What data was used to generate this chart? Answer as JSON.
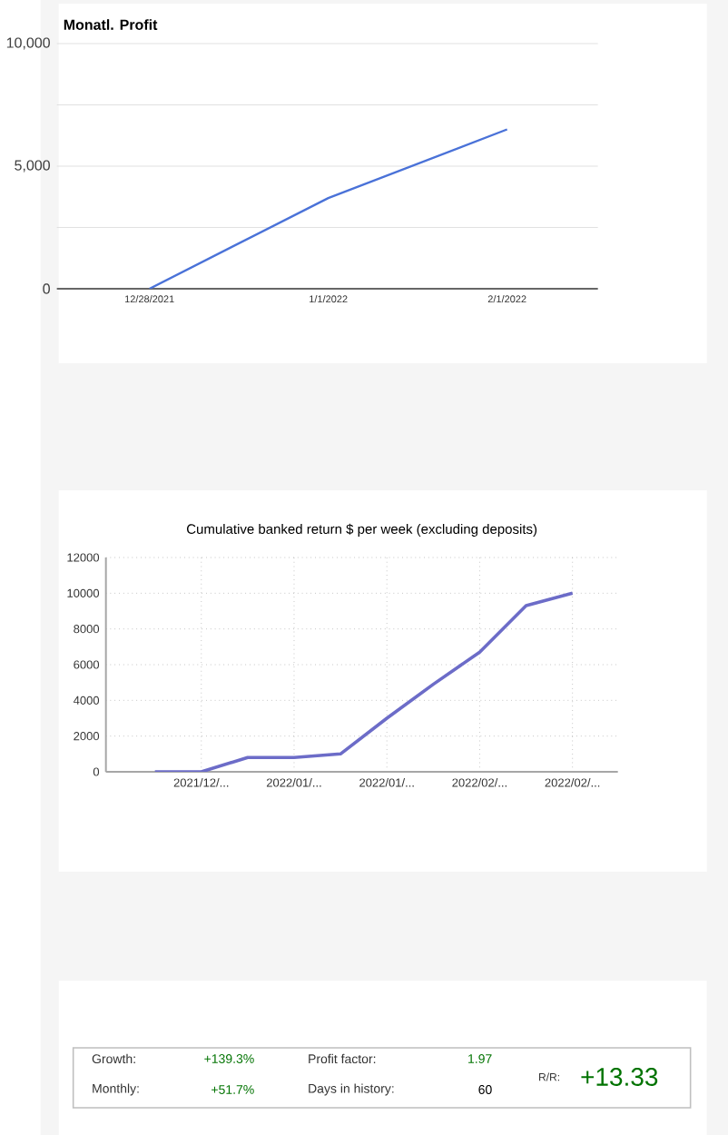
{
  "chart_data": [
    {
      "type": "line",
      "title": "Monatl. Profit",
      "categories": [
        "12/28/2021",
        "1/1/2022",
        "2/1/2022"
      ],
      "values": [
        0,
        3700,
        6500
      ],
      "color": "#4a72d8",
      "ylim": [
        0,
        10000
      ],
      "yticks": [
        0,
        {
          "value": 2500,
          "label": null
        },
        {
          "value": 5000,
          "label": "5,000"
        },
        {
          "value": 7500,
          "label": null
        },
        {
          "value": 10000,
          "label": "10,000"
        }
      ],
      "grid": "y"
    },
    {
      "type": "line",
      "title": "Cumulative banked return $ per week (excluding deposits)",
      "categories": [
        null,
        "2021/12/...",
        null,
        "2022/01/...",
        null,
        "2022/01/...",
        null,
        "2022/02/...",
        null,
        "2022/02/..."
      ],
      "values": [
        0,
        0,
        800,
        800,
        1000,
        3000,
        4900,
        6700,
        9300,
        10000
      ],
      "color": "#6c6cc8",
      "ylim": [
        0,
        12000
      ],
      "yticks": [
        0,
        2000,
        4000,
        6000,
        8000,
        10000,
        12000
      ],
      "grid": true
    },
    {
      "type": "other",
      "annotations": [
        "Growth:",
        "+139.3%",
        "Monthly:",
        "+51.7%",
        "Profit factor:",
        "1.97",
        "Days in history:",
        "60",
        "R/R:",
        "+13.33"
      ]
    }
  ]
}
